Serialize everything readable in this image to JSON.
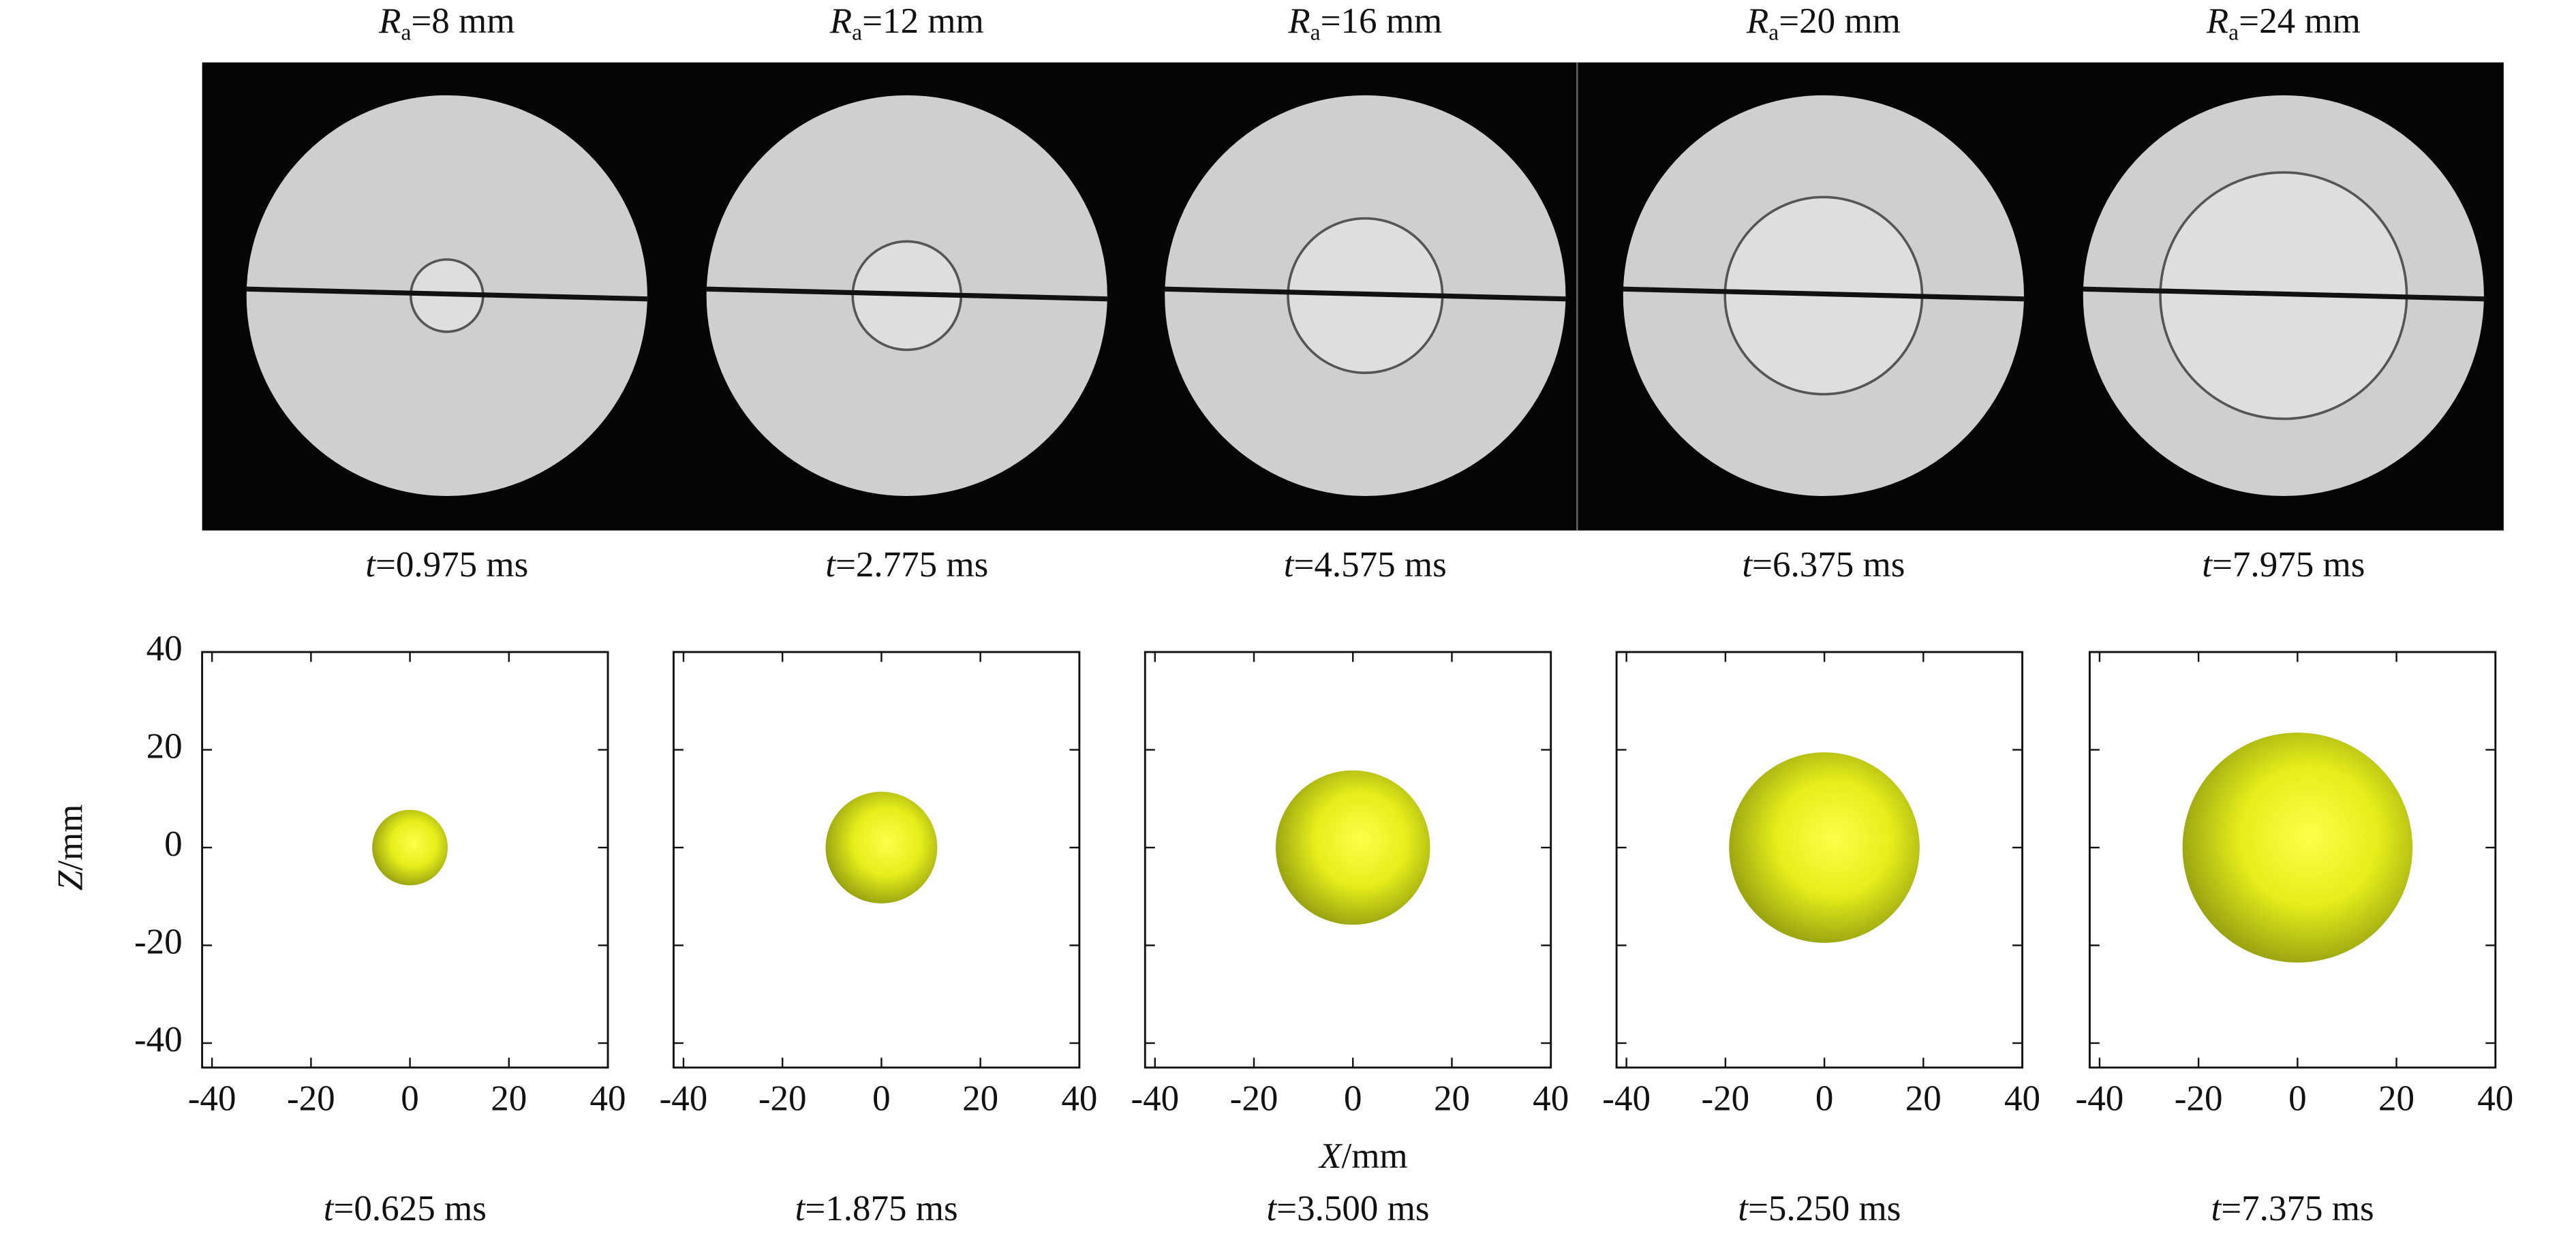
{
  "photos": {
    "panels": [
      {
        "label": {
          "symbol": "R",
          "sub": "a",
          "text": "=8 mm"
        },
        "time": {
          "symbol": "t",
          "text": "=0.975 ms"
        }
      },
      {
        "label": {
          "symbol": "R",
          "sub": "a",
          "text": "=12 mm"
        },
        "time": {
          "symbol": "t",
          "text": "=2.775 ms"
        }
      },
      {
        "label": {
          "symbol": "R",
          "sub": "a",
          "text": "=16 mm"
        },
        "time": {
          "symbol": "t",
          "text": "=4.575 ms"
        }
      },
      {
        "label": {
          "symbol": "R",
          "sub": "a",
          "text": "=20 mm"
        },
        "time": {
          "symbol": "t",
          "text": "=6.375 ms"
        }
      },
      {
        "label": {
          "symbol": "R",
          "sub": "a",
          "text": "=24 mm"
        },
        "time": {
          "symbol": "t",
          "text": "=7.975 ms"
        }
      }
    ]
  },
  "simulations": {
    "xlabel": {
      "symbol": "X",
      "text": "/mm"
    },
    "ylabel": {
      "symbol": "Z",
      "text": "/mm"
    },
    "xlim": [
      -42,
      40
    ],
    "ylim": [
      -45,
      40
    ],
    "xticks": [
      -40,
      -20,
      0,
      20,
      40
    ],
    "yticks": [
      -40,
      -20,
      0,
      20,
      40
    ],
    "panels": [
      {
        "time": {
          "symbol": "t",
          "text": "=0.625 ms"
        }
      },
      {
        "time": {
          "symbol": "t",
          "text": "=1.875 ms"
        }
      },
      {
        "time": {
          "symbol": "t",
          "text": "=3.500 ms"
        }
      },
      {
        "time": {
          "symbol": "t",
          "text": "=5.250 ms"
        }
      },
      {
        "time": {
          "symbol": "t",
          "text": "=7.375 ms"
        }
      }
    ]
  }
}
